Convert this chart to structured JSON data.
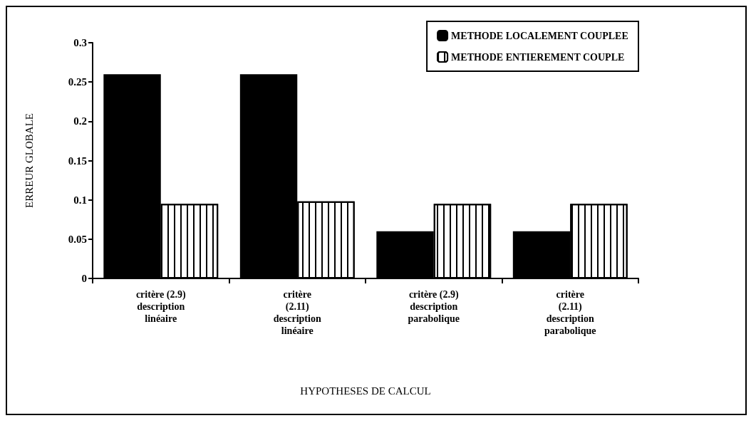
{
  "chart_data": {
    "type": "bar",
    "xlabel": "HYPOTHESES DE CALCUL",
    "ylabel": "ERREUR GLOBALE",
    "categories": [
      "critère (2.9)\ndescription\nlinéaire",
      "critère\n(2.11)\ndescription\nlinéaire",
      "critère (2.9)\ndescription\nparabolique",
      "critère\n(2.11)\ndescription\nparabolique"
    ],
    "series": [
      {
        "name": "METHODE LOCALEMENT COUPLEE",
        "color": "#000000",
        "values": [
          0.26,
          0.26,
          0.06,
          0.06
        ]
      },
      {
        "name": "METHODE ENTIEREMENT COUPLE",
        "color": "#ffffff",
        "values": [
          0.095,
          0.098,
          0.095,
          0.095
        ]
      }
    ],
    "ylim": [
      0,
      0.3
    ],
    "yticks": [
      0,
      0.05,
      0.1,
      0.15,
      0.2,
      0.25,
      0.3
    ],
    "grid": false,
    "legend": "top right"
  }
}
